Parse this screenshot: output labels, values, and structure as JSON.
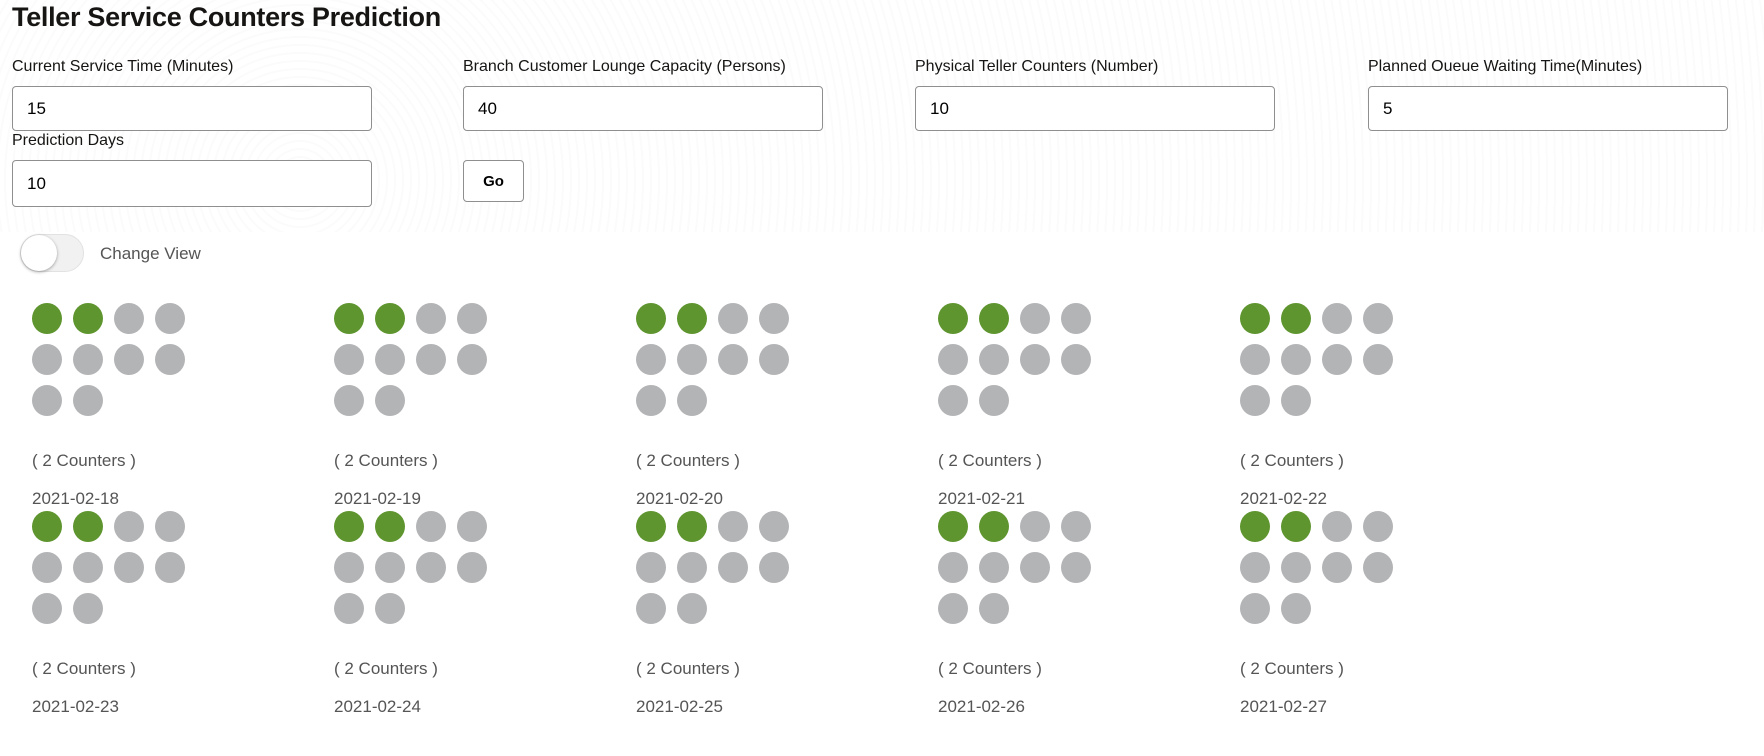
{
  "title": "Teller Service Counters Prediction",
  "fields": [
    {
      "label": "Current Service Time (Minutes)",
      "value": "15"
    },
    {
      "label": "Branch Customer Lounge Capacity (Persons)",
      "value": "40"
    },
    {
      "label": "Physical Teller Counters (Number)",
      "value": "10"
    },
    {
      "label": "Planned Oueue Waiting Time(Minutes)",
      "value": "5"
    },
    {
      "label": "Prediction Days",
      "value": "10"
    }
  ],
  "go_label": "Go",
  "toggle": {
    "label": "Change View",
    "on": false
  },
  "colors": {
    "active": "#5f952f",
    "inactive": "#b3b4b6"
  },
  "total_counters": 10,
  "predictions": [
    {
      "date": "2021-02-18",
      "counters": 2,
      "label": "( 2 Counters )"
    },
    {
      "date": "2021-02-19",
      "counters": 2,
      "label": "( 2 Counters )"
    },
    {
      "date": "2021-02-20",
      "counters": 2,
      "label": "( 2 Counters )"
    },
    {
      "date": "2021-02-21",
      "counters": 2,
      "label": "( 2 Counters )"
    },
    {
      "date": "2021-02-22",
      "counters": 2,
      "label": "( 2 Counters )"
    },
    {
      "date": "2021-02-23",
      "counters": 2,
      "label": "( 2 Counters )"
    },
    {
      "date": "2021-02-24",
      "counters": 2,
      "label": "( 2 Counters )"
    },
    {
      "date": "2021-02-25",
      "counters": 2,
      "label": "( 2 Counters )"
    },
    {
      "date": "2021-02-26",
      "counters": 2,
      "label": "( 2 Counters )"
    },
    {
      "date": "2021-02-27",
      "counters": 2,
      "label": "( 2 Counters )"
    }
  ]
}
